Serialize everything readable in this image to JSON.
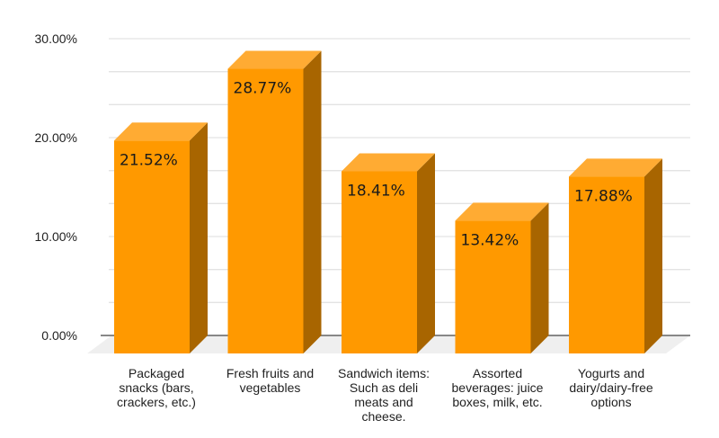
{
  "chart_data": {
    "type": "bar",
    "style": "3d-column",
    "title": "",
    "xlabel": "",
    "ylabel": "",
    "categories": [
      [
        "Packaged",
        "snacks (bars,",
        "crackers, etc.)"
      ],
      [
        "Fresh fruits and",
        "vegetables"
      ],
      [
        "Sandwich items:",
        "Such as deli",
        "meats and",
        "cheese."
      ],
      [
        "Assorted",
        "beverages: juice",
        "boxes, milk, etc."
      ],
      [
        "Yogurts and",
        "dairy/dairy-free",
        "options"
      ]
    ],
    "values": [
      21.52,
      28.77,
      18.41,
      13.42,
      17.88
    ],
    "data_labels": [
      "21.52%",
      "28.77%",
      "18.41%",
      "13.42%",
      "17.88%"
    ],
    "ylim": [
      0,
      30
    ],
    "yticks": [
      0,
      10,
      20,
      30
    ],
    "ytick_labels": [
      "0.00%",
      "10.00%",
      "20.00%",
      "30.00%"
    ],
    "minor_gridlines_per_major": 3,
    "grid": true,
    "legend": "none",
    "colors": {
      "bar_front": "#ff9900",
      "bar_top": "#ffab33",
      "bar_side": "#a86500",
      "floor": "#efefef",
      "gridline": "#e3e3e3",
      "axis": "#888888"
    }
  }
}
